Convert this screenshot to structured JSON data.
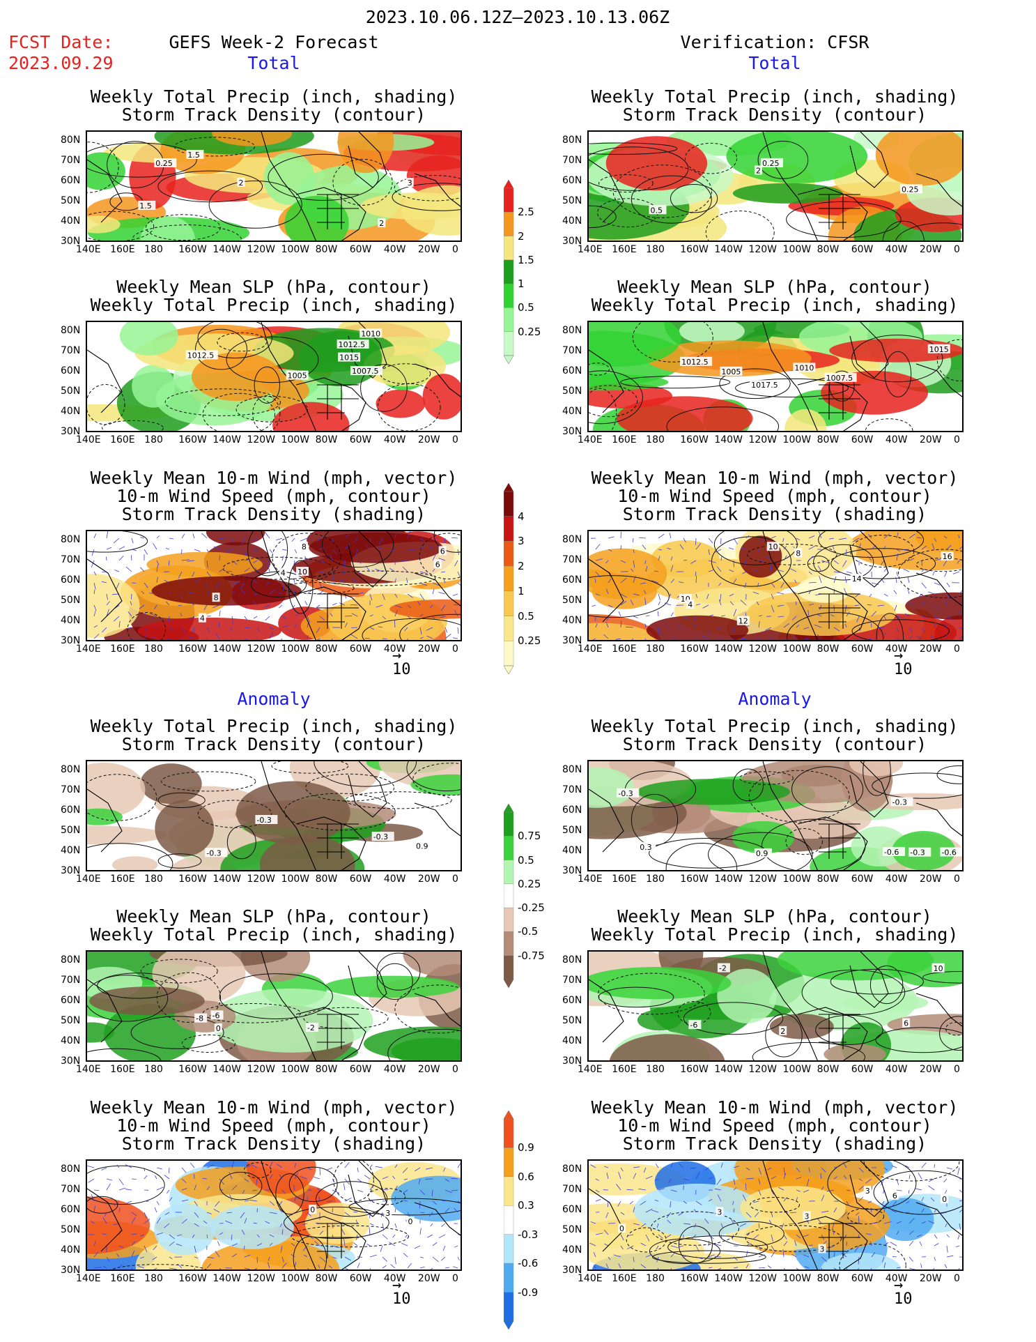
{
  "header": {
    "date_range": "2023.10.06.12Z–2023.10.13.06Z",
    "fcst_label": "FCST Date:",
    "fcst_date": "2023.09.29",
    "left_title": "GEFS Week-2 Forecast",
    "right_title": "Verification: CFSR",
    "section_total": "Total",
    "section_anomaly": "Anomaly"
  },
  "panel_titles": {
    "precip_track": [
      "Weekly Total Precip (inch, shading)",
      "Storm Track Density (contour)"
    ],
    "slp_precip": [
      "Weekly Mean SLP (hPa, contour)",
      "Weekly Total Precip (inch, shading)"
    ],
    "wind_track": [
      "Weekly Mean 10-m Wind (mph, vector)",
      "10-m Wind Speed (mph, contour)",
      "Storm Track Density (shading)"
    ]
  },
  "axes": {
    "lon_labels": [
      "140E",
      "160E",
      "180",
      "160W",
      "140W",
      "120W",
      "100W",
      "80W",
      "60W",
      "40W",
      "20W",
      "0"
    ],
    "lat_labels": [
      "80N",
      "70N",
      "60N",
      "50N",
      "40N",
      "30N"
    ]
  },
  "vector_reference": "10",
  "colorbars": {
    "precip_total": {
      "labels": [
        "2.5",
        "2",
        "1.5",
        "1",
        "0.5",
        "0.25"
      ],
      "colors": [
        "#e8231e",
        "#f5961e",
        "#f5e67d",
        "#1e9e1e",
        "#32d232",
        "#96f596",
        "#c8fac8"
      ]
    },
    "track_total": {
      "labels": [
        "4",
        "3",
        "2",
        "1",
        "0.5",
        "0.25"
      ],
      "colors": [
        "#7d0a0a",
        "#c81414",
        "#ea5a14",
        "#f5a01e",
        "#f8c850",
        "#fae68c",
        "#fefac8"
      ]
    },
    "precip_anom": {
      "labels": [
        "0.75",
        "0.5",
        "0.25",
        "-0.25",
        "-0.5",
        "-0.75"
      ],
      "colors": [
        "#1ea01e",
        "#3cd23c",
        "#b4f5b4",
        "#ffffff",
        "#e6c8b4",
        "#b48c78",
        "#7d5a46"
      ]
    },
    "track_anom": {
      "labels": [
        "0.9",
        "0.6",
        "0.3",
        "-0.3",
        "-0.6",
        "-0.9"
      ],
      "colors": [
        "#f0501e",
        "#f5a01e",
        "#fae68c",
        "#ffffff",
        "#b4e6fa",
        "#50aaf0",
        "#1e6ee6"
      ]
    }
  },
  "contour_labels": {
    "f_precip_total": [
      "1.5",
      "3",
      "2",
      "2",
      "1.5",
      "0.25"
    ],
    "v_precip_total": [
      "2",
      "0.25",
      "0.5",
      "0.25"
    ],
    "f_slp_total": [
      "1010",
      "1012.5",
      "1015",
      "1012.5",
      "1005",
      "1007.5"
    ],
    "v_slp_total": [
      "1015",
      "1012.5",
      "1017.5",
      "1005",
      "1010",
      "1007.5"
    ],
    "f_wind_total": [
      "4",
      "8",
      "6",
      "10",
      "6",
      "8",
      "4"
    ],
    "v_wind_total": [
      "10",
      "8",
      "14",
      "10",
      "16",
      "4",
      "12"
    ],
    "f_precip_anom": [
      "-0.3",
      "0.9",
      "-0.3",
      "-0.3"
    ],
    "v_precip_anom": [
      "-0.6",
      "-0.3",
      "-0.3",
      "0.3",
      "0.9",
      "-0.6",
      "-0.3"
    ],
    "f_slp_anom": [
      "-6",
      "-8",
      "-2",
      "0"
    ],
    "v_slp_anom": [
      "2",
      "-6",
      "-2",
      "10",
      "6"
    ],
    "f_wind_anom": [
      "3",
      "0",
      "0"
    ],
    "v_wind_anom": [
      "0",
      "3",
      "3",
      "6",
      "3",
      "0",
      "3"
    ]
  }
}
